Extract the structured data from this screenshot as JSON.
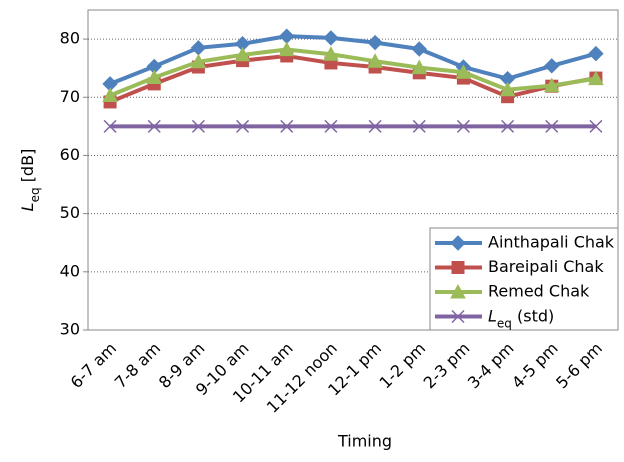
{
  "chart_data": {
    "type": "line",
    "x_label": "Timing",
    "y_label": "Leq  [dB]",
    "categories": [
      "6-7 am",
      "7-8 am",
      "8-9 am",
      "9-10 am",
      "10-11 am",
      "11-12 noon",
      "12-1 pm",
      "1-2 pm",
      "2-3 pm",
      "3-4 pm",
      "4-5 pm",
      "5-6 pm"
    ],
    "series": [
      {
        "name": "Ainthapali Chak",
        "color": "#4f81bd",
        "marker": "diamond",
        "values": [
          72.3,
          75.3,
          78.5,
          79.2,
          80.5,
          80.2,
          79.4,
          78.3,
          75.2,
          73.2,
          75.4,
          77.5
        ]
      },
      {
        "name": "Bareipali Chak",
        "color": "#c0504d",
        "marker": "square",
        "values": [
          69.2,
          72.3,
          75.2,
          76.3,
          77.1,
          75.9,
          75.2,
          74.2,
          73.3,
          70.1,
          71.9,
          73.3
        ]
      },
      {
        "name": "Remed Chak",
        "color": "#9bbb59",
        "marker": "triangle",
        "values": [
          70.3,
          73.4,
          76.1,
          77.3,
          78.2,
          77.4,
          76.2,
          75.1,
          74.3,
          71.3,
          72.0,
          73.2
        ]
      },
      {
        "name": "Leq  (std)",
        "color": "#8064a2",
        "marker": "x",
        "values": [
          65,
          65,
          65,
          65,
          65,
          65,
          65,
          65,
          65,
          65,
          65,
          65
        ]
      }
    ],
    "ylim": [
      30,
      85
    ],
    "yticks": [
      30,
      40,
      50,
      60,
      70,
      80
    ],
    "grid": true,
    "legend": "lower right"
  }
}
